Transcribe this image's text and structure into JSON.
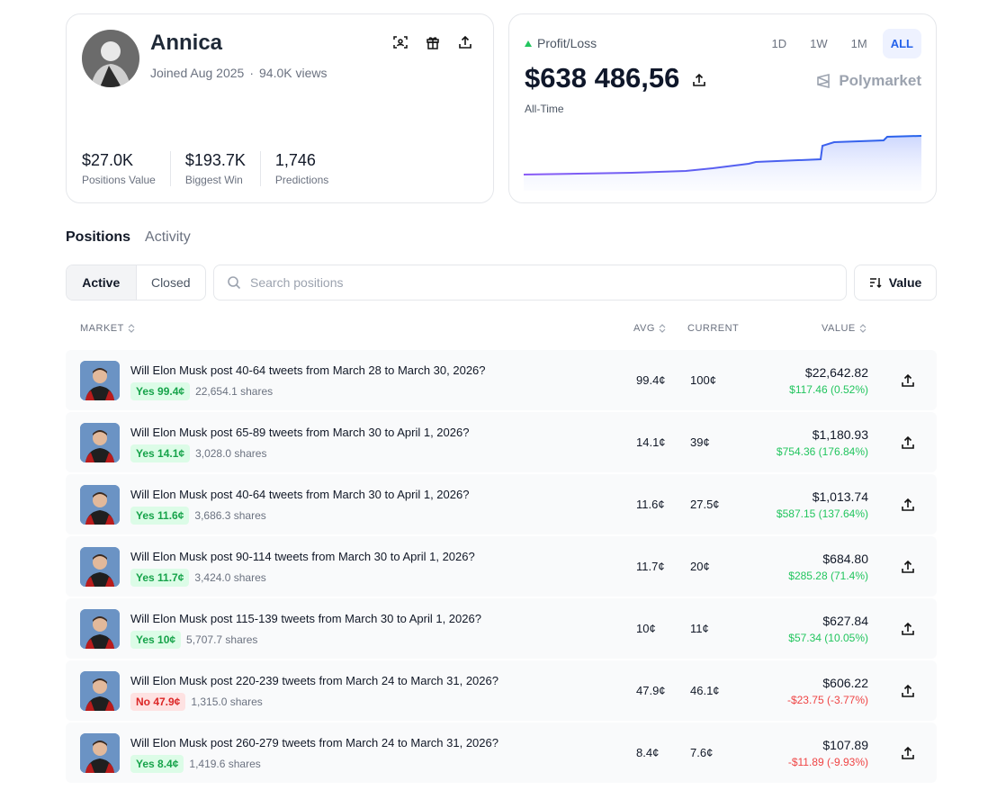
{
  "profile": {
    "name": "Annica",
    "joined": "Joined Aug 2025",
    "separator": "·",
    "views": "94.0K views",
    "icons": [
      "scan-icon",
      "gift-icon",
      "share-icon"
    ],
    "stats": [
      {
        "value": "$27.0K",
        "label": "Positions Value"
      },
      {
        "value": "$193.7K",
        "label": "Biggest Win"
      },
      {
        "value": "1,746",
        "label": "Predictions"
      }
    ]
  },
  "pnl": {
    "label": "Profit/Loss",
    "value": "$638 486,56",
    "period": "All-Time",
    "ranges": [
      "1D",
      "1W",
      "1M",
      "ALL"
    ],
    "active_range": "ALL",
    "brand": "Polymarket",
    "colors": {
      "line_start": "#8b5cf6",
      "line_end": "#2563eb",
      "up": "#22c55e"
    }
  },
  "tabs": {
    "positions": "Positions",
    "activity": "Activity",
    "active": "Positions"
  },
  "filters": {
    "active": "Active",
    "closed": "Closed",
    "search_placeholder": "Search positions",
    "sort_label": "Value"
  },
  "table": {
    "headers": {
      "market": "MARKET",
      "avg": "AVG",
      "current": "CURRENT",
      "value": "VALUE"
    },
    "rows": [
      {
        "title": "Will Elon Musk post 40-64 tweets from March 28 to March 30, 2026?",
        "outcome": "Yes 99.4¢",
        "side": "yes",
        "shares": "22,654.1 shares",
        "avg": "99.4¢",
        "current": "100¢",
        "value": "$22,642.82",
        "change": "$117.46 (0.52%)",
        "dir": "pos"
      },
      {
        "title": "Will Elon Musk post 65-89 tweets from March 30 to April 1, 2026?",
        "outcome": "Yes 14.1¢",
        "side": "yes",
        "shares": "3,028.0 shares",
        "avg": "14.1¢",
        "current": "39¢",
        "value": "$1,180.93",
        "change": "$754.36 (176.84%)",
        "dir": "pos"
      },
      {
        "title": "Will Elon Musk post 40-64 tweets from March 30 to April 1, 2026?",
        "outcome": "Yes 11.6¢",
        "side": "yes",
        "shares": "3,686.3 shares",
        "avg": "11.6¢",
        "current": "27.5¢",
        "value": "$1,013.74",
        "change": "$587.15 (137.64%)",
        "dir": "pos"
      },
      {
        "title": "Will Elon Musk post 90-114 tweets from March 30 to April 1, 2026?",
        "outcome": "Yes 11.7¢",
        "side": "yes",
        "shares": "3,424.0 shares",
        "avg": "11.7¢",
        "current": "20¢",
        "value": "$684.80",
        "change": "$285.28 (71.4%)",
        "dir": "pos"
      },
      {
        "title": "Will Elon Musk post 115-139 tweets from March 30 to April 1, 2026?",
        "outcome": "Yes 10¢",
        "side": "yes",
        "shares": "5,707.7 shares",
        "avg": "10¢",
        "current": "11¢",
        "value": "$627.84",
        "change": "$57.34 (10.05%)",
        "dir": "pos"
      },
      {
        "title": "Will Elon Musk post 220-239 tweets from March 24 to March 31, 2026?",
        "outcome": "No 47.9¢",
        "side": "no",
        "shares": "1,315.0 shares",
        "avg": "47.9¢",
        "current": "46.1¢",
        "value": "$606.22",
        "change": "-$23.75 (-3.77%)",
        "dir": "neg"
      },
      {
        "title": "Will Elon Musk post 260-279 tweets from March 24 to March 31, 2026?",
        "outcome": "Yes 8.4¢",
        "side": "yes",
        "shares": "1,419.6 shares",
        "avg": "8.4¢",
        "current": "7.6¢",
        "value": "$107.89",
        "change": "-$11.89 (-9.93%)",
        "dir": "neg"
      }
    ]
  }
}
